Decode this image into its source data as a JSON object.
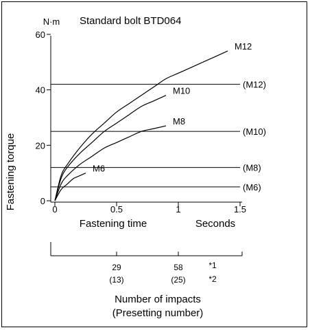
{
  "chart_data": {
    "type": "line",
    "title": "Standard bolt BTD064",
    "y_unit": "N·m",
    "ylabel": "Fastening torque",
    "xlabel": "Fastening time",
    "x_unit_label": "Seconds",
    "xlim": [
      0,
      1.5
    ],
    "ylim": [
      0,
      60
    ],
    "x_ticks": [
      "0",
      "0.5",
      "1",
      "1.5"
    ],
    "y_ticks": [
      "0",
      "20",
      "40",
      "60"
    ],
    "series": [
      {
        "name": "M12",
        "x": [
          0,
          0.05,
          0.1,
          0.2,
          0.3,
          0.4,
          0.5,
          0.6,
          0.7,
          0.8,
          0.9,
          1.0,
          1.1,
          1.2,
          1.3,
          1.4
        ],
        "y": [
          0,
          9,
          13,
          19,
          24,
          28,
          32,
          35,
          38,
          41,
          44,
          46,
          48,
          50,
          52,
          54
        ]
      },
      {
        "name": "M10",
        "x": [
          0,
          0.05,
          0.1,
          0.2,
          0.3,
          0.4,
          0.5,
          0.6,
          0.7,
          0.8,
          0.9
        ],
        "y": [
          0,
          8,
          12,
          17,
          21,
          25,
          28,
          31,
          34,
          36,
          38
        ]
      },
      {
        "name": "M8",
        "x": [
          0,
          0.05,
          0.1,
          0.2,
          0.3,
          0.4,
          0.5,
          0.6,
          0.7,
          0.8,
          0.9
        ],
        "y": [
          0,
          6,
          9,
          13,
          16,
          19,
          21,
          23,
          25,
          26,
          27
        ]
      },
      {
        "name": "M6",
        "x": [
          0,
          0.05,
          0.1,
          0.15,
          0.2,
          0.25
        ],
        "y": [
          0,
          4,
          6,
          8,
          9,
          10
        ]
      }
    ],
    "reference_lines": [
      {
        "label": "(M12)",
        "y": 42
      },
      {
        "label": "(M10)",
        "y": 25
      },
      {
        "label": "(M8)",
        "y": 12
      },
      {
        "label": "(M6)",
        "y": 5
      }
    ],
    "impacts_axis": {
      "title": "Number of impacts",
      "subtitle": "(Presetting number)",
      "ticks": [
        {
          "x": 0.5,
          "value": "29",
          "preset": "(13)"
        },
        {
          "x": 1.0,
          "value": "58",
          "preset": "(25)"
        }
      ],
      "notes": [
        "*1",
        "*2"
      ]
    }
  }
}
